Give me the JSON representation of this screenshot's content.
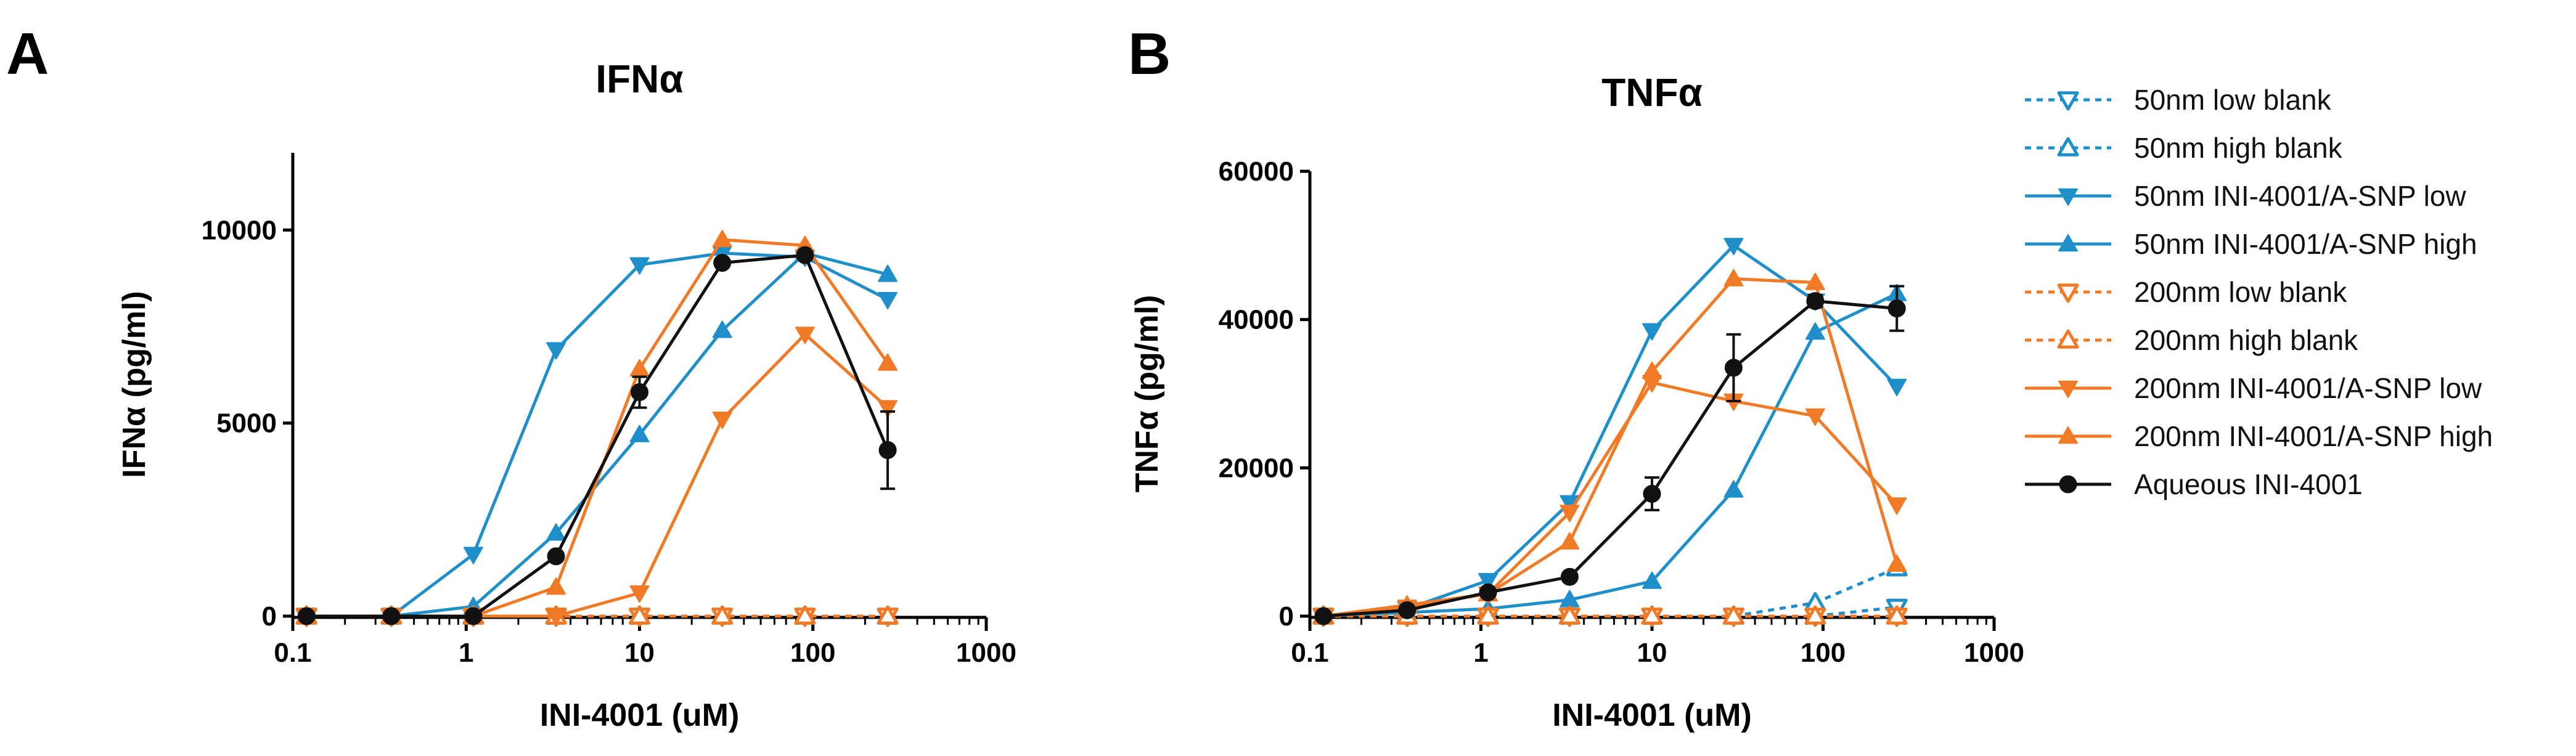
{
  "panels": {
    "a": {
      "letter": "A"
    },
    "b": {
      "letter": "B"
    }
  },
  "colors": {
    "blue": "#1f8fc9",
    "orange": "#f07a25",
    "black": "#111111"
  },
  "legend": {
    "items": [
      {
        "label": "50nm low blank",
        "color": "#1f8fc9",
        "marker": "tri-down-open",
        "dashed": true
      },
      {
        "label": "50nm high blank",
        "color": "#1f8fc9",
        "marker": "tri-up-open",
        "dashed": true
      },
      {
        "label": "50nm INI-4001/A-SNP low",
        "color": "#1f8fc9",
        "marker": "tri-down",
        "dashed": false
      },
      {
        "label": "50nm INI-4001/A-SNP high",
        "color": "#1f8fc9",
        "marker": "tri-up",
        "dashed": false
      },
      {
        "label": "200nm low blank",
        "color": "#f07a25",
        "marker": "tri-down-open",
        "dashed": true
      },
      {
        "label": "200nm high blank",
        "color": "#f07a25",
        "marker": "tri-up-open",
        "dashed": true
      },
      {
        "label": "200nm INI-4001/A-SNP low",
        "color": "#f07a25",
        "marker": "tri-down",
        "dashed": false
      },
      {
        "label": "200nm INI-4001/A-SNP high",
        "color": "#f07a25",
        "marker": "tri-up",
        "dashed": false
      },
      {
        "label": "Aqueous INI-4001",
        "color": "#111111",
        "marker": "circle",
        "dashed": false
      }
    ]
  },
  "chart_data": [
    {
      "type": "line",
      "title": "IFNα",
      "xlabel": "INI-4001 (uM)",
      "ylabel": "IFNα (pg/ml)",
      "xscale": "log",
      "xlim": [
        0.1,
        1000
      ],
      "ylim": [
        0,
        12000
      ],
      "x_ticks": [
        0.1,
        1,
        10,
        100,
        1000
      ],
      "x_tick_labels": [
        "0.1",
        "1",
        "10",
        "100",
        "1000"
      ],
      "y_ticks": [
        0,
        5000,
        10000
      ],
      "y_tick_labels": [
        "0",
        "5000",
        "10000"
      ],
      "x": [
        0.12,
        0.37,
        1.1,
        3.3,
        10,
        30,
        90,
        270
      ],
      "series": [
        {
          "name": "50nm low blank",
          "values": [
            0,
            0,
            0,
            0,
            0,
            0,
            0,
            0
          ],
          "error": [
            0,
            0,
            0,
            0,
            0,
            0,
            0,
            0
          ]
        },
        {
          "name": "50nm high blank",
          "values": [
            0,
            0,
            0,
            0,
            0,
            0,
            0,
            0
          ],
          "error": [
            0,
            0,
            0,
            0,
            0,
            0,
            0,
            0
          ]
        },
        {
          "name": "50nm INI-4001/A-SNP low",
          "values": [
            0,
            0,
            1600,
            6900,
            9100,
            9400,
            9300,
            8200
          ],
          "error": [
            0,
            0,
            0,
            0,
            0,
            0,
            0,
            0
          ]
        },
        {
          "name": "50nm INI-4001/A-SNP high",
          "values": [
            0,
            0,
            250,
            2150,
            4700,
            7400,
            9400,
            8850
          ],
          "error": [
            0,
            0,
            0,
            0,
            0,
            0,
            0,
            0
          ]
        },
        {
          "name": "200nm low blank",
          "values": [
            0,
            0,
            0,
            0,
            0,
            0,
            0,
            0
          ],
          "error": [
            0,
            0,
            0,
            0,
            0,
            0,
            0,
            0
          ]
        },
        {
          "name": "200nm high blank",
          "values": [
            0,
            0,
            0,
            0,
            0,
            0,
            0,
            0
          ],
          "error": [
            0,
            0,
            0,
            0,
            0,
            0,
            0,
            0
          ]
        },
        {
          "name": "200nm INI-4001/A-SNP low",
          "values": [
            0,
            0,
            0,
            0,
            600,
            5100,
            7300,
            5400
          ],
          "error": [
            0,
            0,
            0,
            0,
            0,
            0,
            0,
            0
          ]
        },
        {
          "name": "200nm INI-4001/A-SNP high",
          "values": [
            0,
            0,
            0,
            750,
            6400,
            9750,
            9600,
            6550
          ],
          "error": [
            0,
            0,
            0,
            0,
            0,
            0,
            0,
            0
          ]
        },
        {
          "name": "Aqueous INI-4001",
          "values": [
            0,
            0,
            0,
            1550,
            5800,
            9150,
            9350,
            4300
          ],
          "error": [
            0,
            0,
            0,
            0,
            400,
            0,
            0,
            1000
          ]
        }
      ]
    },
    {
      "type": "line",
      "title": "TNFα",
      "xlabel": "INI-4001 (uM)",
      "ylabel": "TNFα (pg/ml)",
      "xscale": "log",
      "xlim": [
        0.1,
        1000
      ],
      "ylim": [
        0,
        60000
      ],
      "x_ticks": [
        0.1,
        1,
        10,
        100,
        1000
      ],
      "x_tick_labels": [
        "0.1",
        "1",
        "10",
        "100",
        "1000"
      ],
      "y_ticks": [
        0,
        20000,
        40000,
        60000
      ],
      "y_tick_labels": [
        "0",
        "20000",
        "40000",
        "60000"
      ],
      "x": [
        0.12,
        0.37,
        1.1,
        3.3,
        10,
        30,
        90,
        270
      ],
      "series": [
        {
          "name": "50nm low blank",
          "values": [
            0,
            0,
            0,
            0,
            0,
            0,
            0,
            1200
          ],
          "error": [
            0,
            0,
            0,
            0,
            0,
            0,
            0,
            0
          ]
        },
        {
          "name": "50nm high blank",
          "values": [
            0,
            0,
            0,
            0,
            0,
            0,
            1800,
            6500
          ],
          "error": [
            0,
            0,
            0,
            0,
            0,
            0,
            0,
            0
          ]
        },
        {
          "name": "50nm INI-4001/A-SNP low",
          "values": [
            0,
            1000,
            4800,
            15300,
            38500,
            50000,
            42500,
            31000
          ],
          "error": [
            0,
            0,
            0,
            0,
            0,
            0,
            0,
            0
          ]
        },
        {
          "name": "50nm INI-4001/A-SNP high",
          "values": [
            0,
            500,
            1000,
            2200,
            4700,
            17000,
            38300,
            43500
          ],
          "error": [
            0,
            0,
            0,
            0,
            0,
            0,
            0,
            0
          ]
        },
        {
          "name": "200nm low blank",
          "values": [
            0,
            0,
            0,
            0,
            0,
            0,
            0,
            0
          ],
          "error": [
            0,
            0,
            0,
            0,
            0,
            0,
            0,
            0
          ]
        },
        {
          "name": "200nm high blank",
          "values": [
            0,
            0,
            0,
            0,
            0,
            0,
            0,
            0
          ],
          "error": [
            0,
            0,
            0,
            0,
            0,
            0,
            0,
            0
          ]
        },
        {
          "name": "200nm INI-4001/A-SNP low",
          "values": [
            0,
            1200,
            3000,
            14000,
            31500,
            29000,
            27000,
            15000
          ],
          "error": [
            0,
            0,
            0,
            0,
            0,
            0,
            0,
            0
          ]
        },
        {
          "name": "200nm INI-4001/A-SNP high",
          "values": [
            0,
            1500,
            3000,
            10000,
            33000,
            45500,
            45000,
            7000
          ],
          "error": [
            0,
            0,
            0,
            0,
            0,
            0,
            0,
            0
          ]
        },
        {
          "name": "Aqueous INI-4001",
          "values": [
            0,
            800,
            3200,
            5300,
            16500,
            33500,
            42500,
            41500
          ],
          "error": [
            0,
            0,
            0,
            0,
            2200,
            4500,
            800,
            3000
          ]
        }
      ]
    }
  ]
}
